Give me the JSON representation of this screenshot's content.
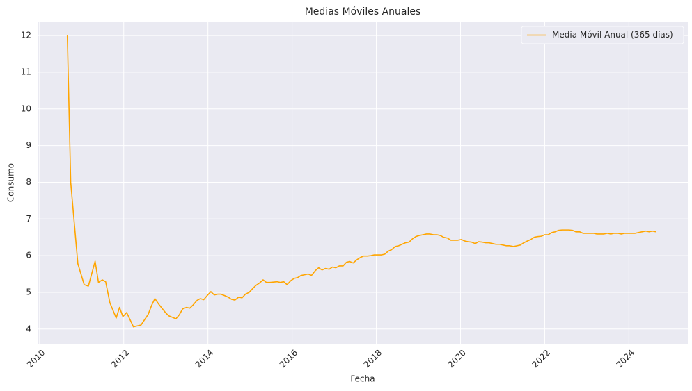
{
  "chart_data": {
    "type": "line",
    "title": "Medias Móviles Anuales",
    "x_label": "Fecha",
    "y_label": "Consumo",
    "x": [
      2010.66,
      2010.74,
      2010.91,
      2011.06,
      2011.16,
      2011.32,
      2011.4,
      2011.49,
      2011.57,
      2011.67,
      2011.82,
      2011.9,
      2011.98,
      2012.07,
      2012.23,
      2012.41,
      2012.58,
      2012.66,
      2012.74,
      2012.83,
      2012.99,
      2013.07,
      2013.24,
      2013.32,
      2013.4,
      2013.49,
      2013.57,
      2013.65,
      2013.74,
      2013.82,
      2013.9,
      2013.98,
      2014.07,
      2014.15,
      2014.23,
      2014.31,
      2014.4,
      2014.48,
      2014.56,
      2014.64,
      2014.73,
      2014.81,
      2014.89,
      2014.98,
      2015.06,
      2015.14,
      2015.22,
      2015.31,
      2015.39,
      2015.47,
      2015.64,
      2015.72,
      2015.8,
      2015.88,
      2015.97,
      2016.05,
      2016.13,
      2016.21,
      2016.3,
      2016.38,
      2016.46,
      2016.55,
      2016.63,
      2016.71,
      2016.79,
      2016.88,
      2016.96,
      2017.04,
      2017.12,
      2017.21,
      2017.29,
      2017.37,
      2017.45,
      2017.54,
      2017.62,
      2017.7,
      2017.79,
      2017.87,
      2017.95,
      2018.12,
      2018.2,
      2018.28,
      2018.36,
      2018.45,
      2018.53,
      2018.61,
      2018.69,
      2018.78,
      2018.86,
      2018.94,
      2019.02,
      2019.11,
      2019.19,
      2019.27,
      2019.36,
      2019.44,
      2019.52,
      2019.6,
      2019.69,
      2019.77,
      2019.85,
      2019.93,
      2020.02,
      2020.1,
      2020.18,
      2020.26,
      2020.35,
      2020.43,
      2020.51,
      2020.6,
      2020.68,
      2020.76,
      2020.84,
      2020.93,
      2021.01,
      2021.09,
      2021.17,
      2021.26,
      2021.34,
      2021.42,
      2021.5,
      2021.59,
      2021.67,
      2021.75,
      2021.83,
      2021.92,
      2022.0,
      2022.08,
      2022.17,
      2022.25,
      2022.33,
      2022.41,
      2022.58,
      2022.66,
      2022.74,
      2022.83,
      2022.91,
      2023.07,
      2023.16,
      2023.24,
      2023.32,
      2023.4,
      2023.49,
      2023.57,
      2023.65,
      2023.74,
      2023.82,
      2023.9,
      2023.98,
      2024.07,
      2024.15,
      2024.23,
      2024.31,
      2024.4,
      2024.48,
      2024.56,
      2024.64
    ],
    "series": [
      {
        "name": "Media Móvil Anual (365 días)",
        "color": "#ffa500",
        "values": [
          12.0,
          8.0,
          5.78,
          5.21,
          5.17,
          5.85,
          5.27,
          5.34,
          5.29,
          4.72,
          4.3,
          4.59,
          4.34,
          4.45,
          4.06,
          4.11,
          4.4,
          4.64,
          4.83,
          4.68,
          4.45,
          4.36,
          4.28,
          4.39,
          4.55,
          4.59,
          4.57,
          4.66,
          4.78,
          4.83,
          4.8,
          4.91,
          5.02,
          4.93,
          4.95,
          4.95,
          4.91,
          4.87,
          4.81,
          4.79,
          4.87,
          4.85,
          4.95,
          5.0,
          5.1,
          5.19,
          5.25,
          5.34,
          5.27,
          5.27,
          5.29,
          5.27,
          5.29,
          5.21,
          5.32,
          5.38,
          5.4,
          5.46,
          5.48,
          5.5,
          5.46,
          5.59,
          5.67,
          5.61,
          5.65,
          5.63,
          5.69,
          5.67,
          5.72,
          5.72,
          5.82,
          5.84,
          5.8,
          5.89,
          5.95,
          5.99,
          5.99,
          6.0,
          6.02,
          6.02,
          6.04,
          6.12,
          6.16,
          6.25,
          6.27,
          6.31,
          6.35,
          6.37,
          6.46,
          6.52,
          6.55,
          6.57,
          6.59,
          6.59,
          6.57,
          6.57,
          6.55,
          6.5,
          6.48,
          6.42,
          6.42,
          6.42,
          6.44,
          6.4,
          6.38,
          6.37,
          6.33,
          6.38,
          6.37,
          6.35,
          6.35,
          6.33,
          6.31,
          6.31,
          6.29,
          6.27,
          6.27,
          6.25,
          6.27,
          6.29,
          6.35,
          6.4,
          6.44,
          6.5,
          6.52,
          6.53,
          6.57,
          6.57,
          6.63,
          6.65,
          6.69,
          6.7,
          6.7,
          6.69,
          6.65,
          6.65,
          6.61,
          6.61,
          6.61,
          6.59,
          6.59,
          6.59,
          6.61,
          6.59,
          6.61,
          6.61,
          6.59,
          6.61,
          6.61,
          6.61,
          6.61,
          6.63,
          6.65,
          6.67,
          6.65,
          6.67,
          6.65
        ]
      }
    ],
    "xlim": [
      2009.97,
      2025.4
    ],
    "ylim": [
      3.58,
      12.38
    ],
    "xticks": [
      2010,
      2012,
      2014,
      2016,
      2018,
      2020,
      2022,
      2024
    ],
    "yticks": [
      4,
      5,
      6,
      7,
      8,
      9,
      10,
      11,
      12
    ],
    "grid": true,
    "legend": "upper right"
  }
}
